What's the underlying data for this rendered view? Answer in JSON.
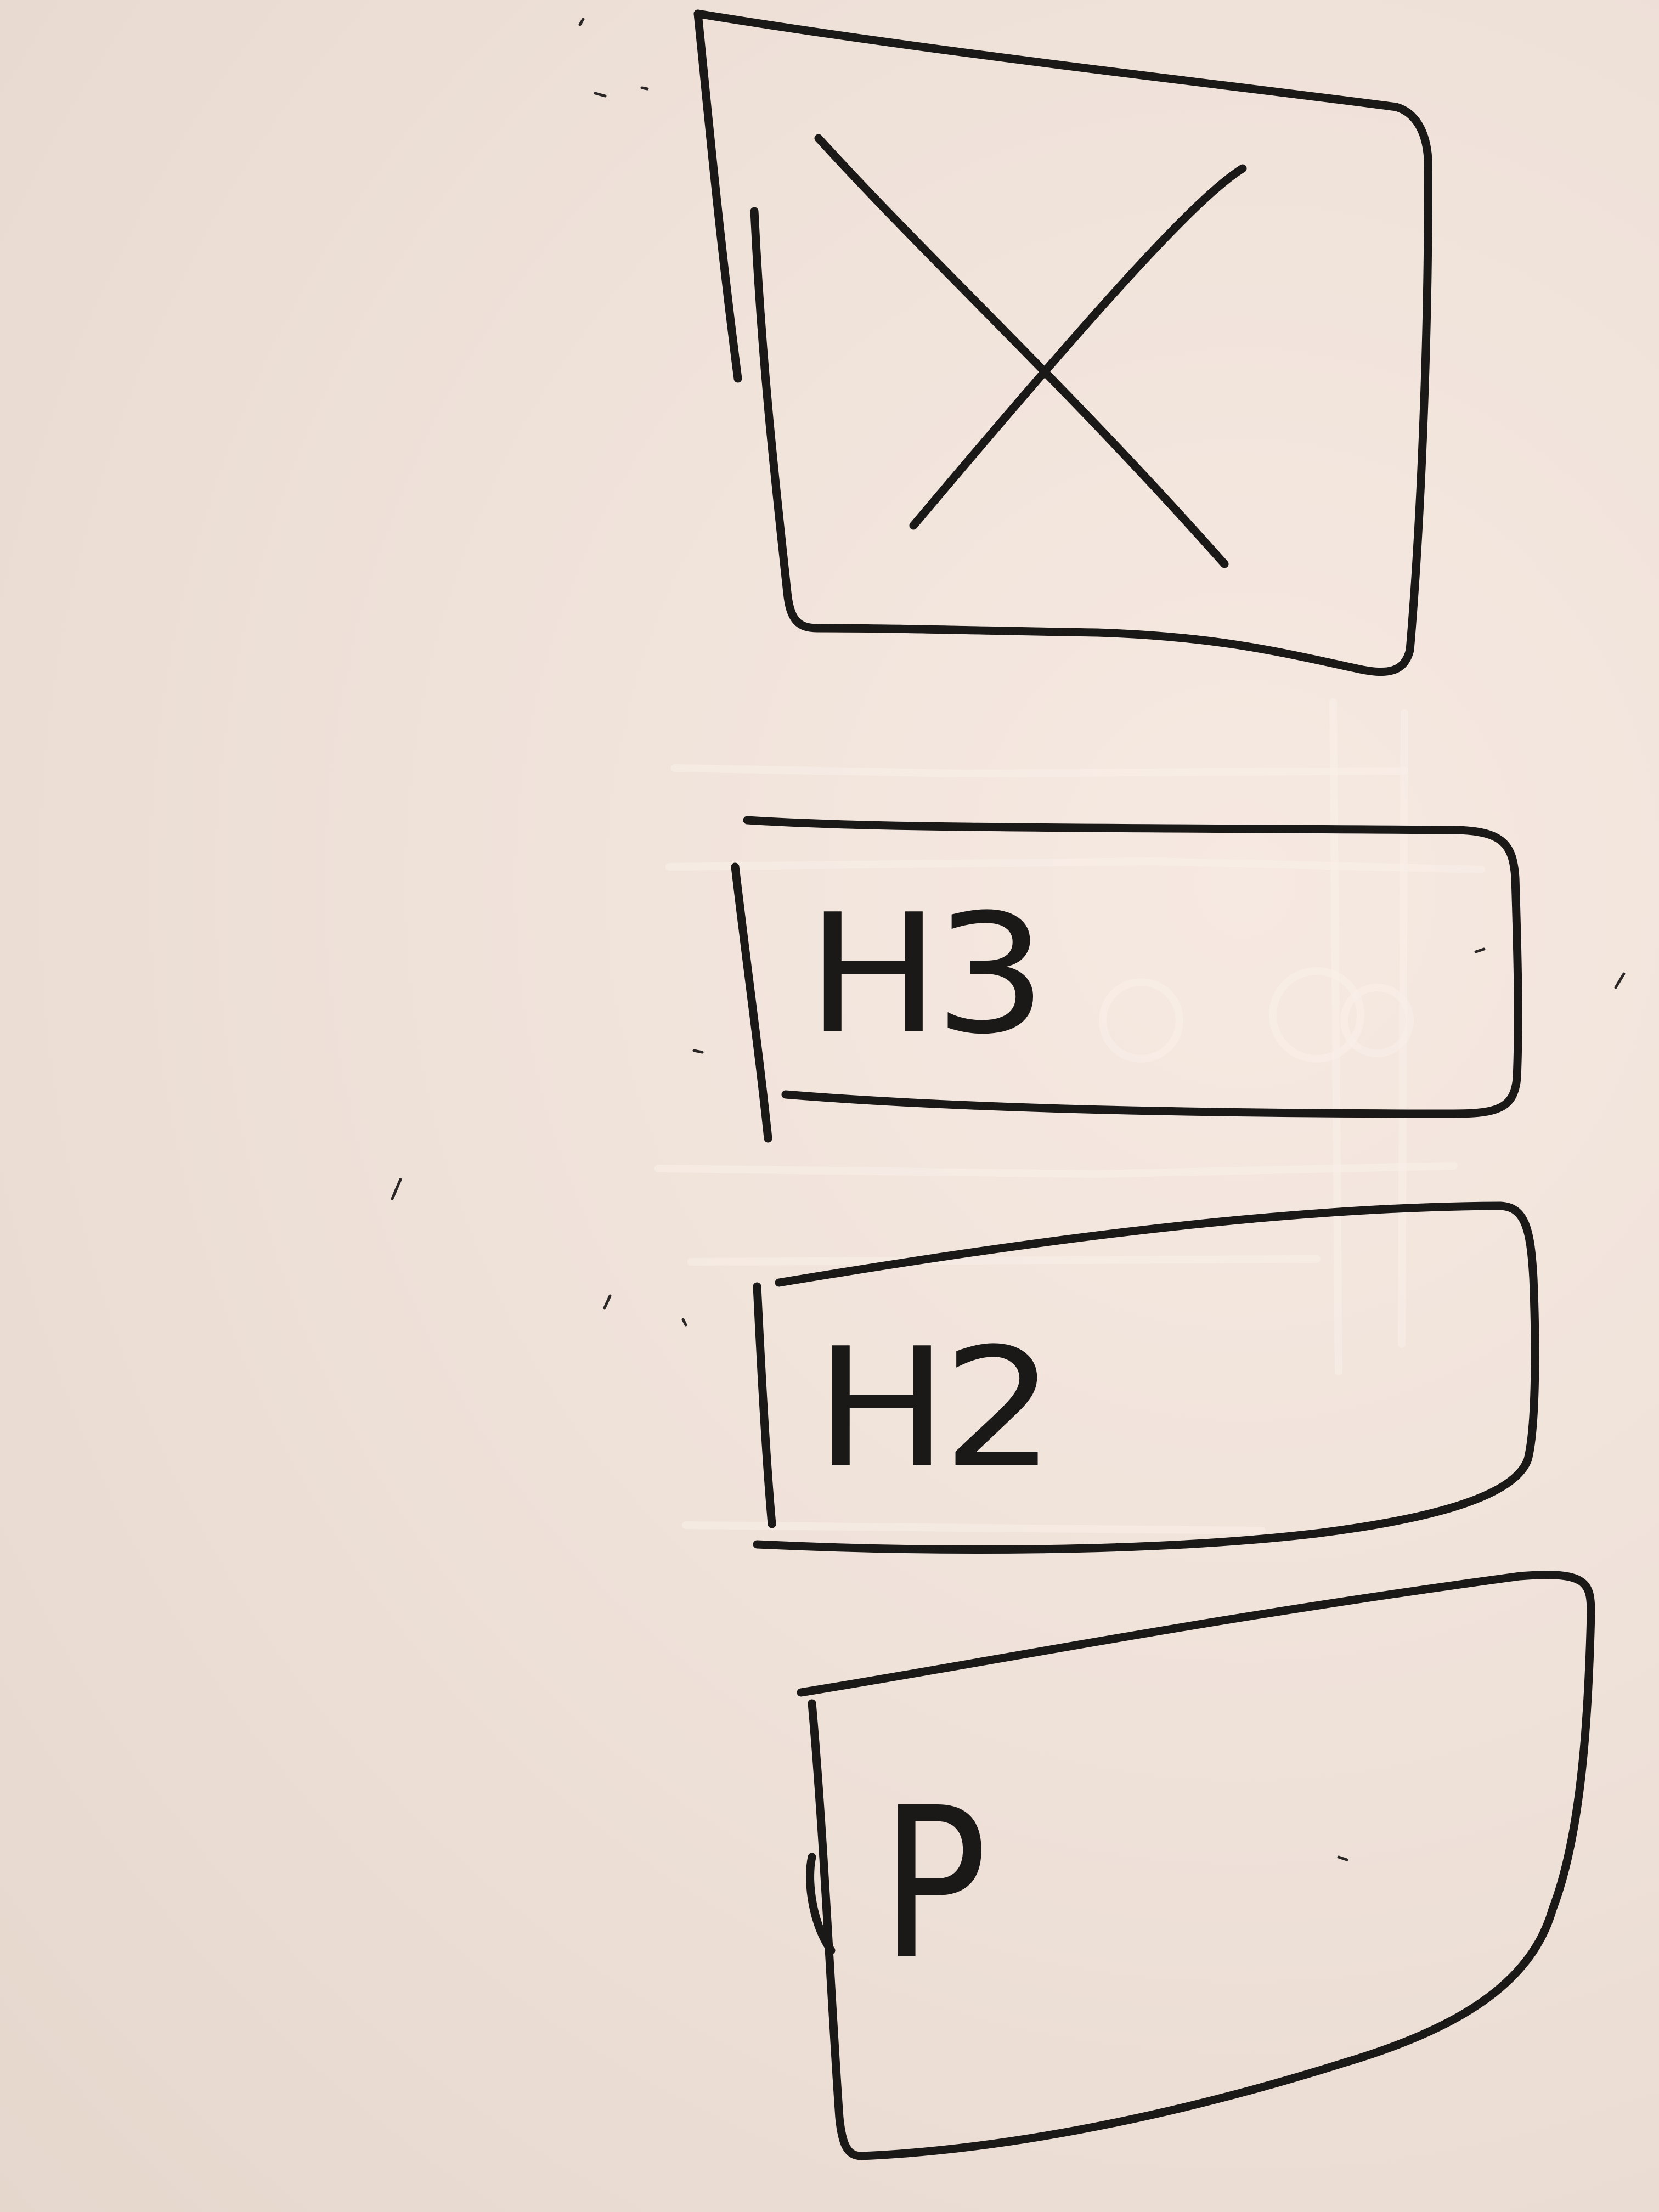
{
  "wireframe": {
    "image_placeholder": {
      "icon": "crossed-box-image-icon"
    },
    "blocks": [
      {
        "label": "H3"
      },
      {
        "label": "H2"
      },
      {
        "label": "P"
      }
    ]
  },
  "colors": {
    "ink": "#1a1918",
    "whiteboard": "#efe2d9"
  }
}
